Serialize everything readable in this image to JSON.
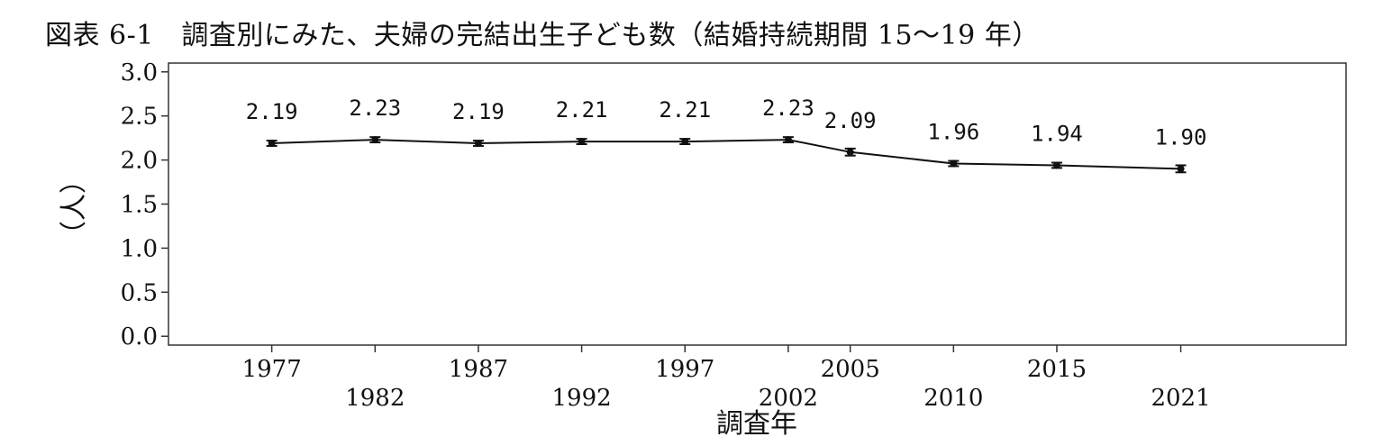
{
  "chart_data": {
    "type": "line",
    "title": "図表 6-1　調査別にみた、夫婦の完結出生子ども数（結婚持続期間 15〜19 年）",
    "xlabel": "調査年",
    "ylabel": "（人）",
    "x": [
      1977,
      1982,
      1987,
      1992,
      1997,
      2002,
      2005,
      2010,
      2015,
      2021
    ],
    "x_tick_labels": [
      "1977",
      "1982",
      "1987",
      "1992",
      "1997",
      "2002",
      "2005",
      "2010",
      "2015",
      "2021"
    ],
    "y_tick_labels": [
      "0.0",
      "0.5",
      "1.0",
      "1.5",
      "2.0",
      "2.5",
      "3.0"
    ],
    "series": [
      {
        "values": [
          2.19,
          2.23,
          2.19,
          2.21,
          2.21,
          2.23,
          2.09,
          1.96,
          1.94,
          1.9
        ],
        "data_labels": [
          "2.19",
          "2.23",
          "2.19",
          "2.21",
          "2.21",
          "2.23",
          "2.09",
          "1.96",
          "1.94",
          "1.90"
        ],
        "error": [
          0.03,
          0.03,
          0.03,
          0.03,
          0.03,
          0.03,
          0.04,
          0.03,
          0.03,
          0.04
        ],
        "color": "#111111"
      }
    ],
    "ylim": [
      -0.1,
      3.1
    ],
    "ticks": [
      0.0,
      0.5,
      1.0,
      1.5,
      2.0,
      2.5,
      3.0
    ],
    "grid": false,
    "legend": "none"
  }
}
